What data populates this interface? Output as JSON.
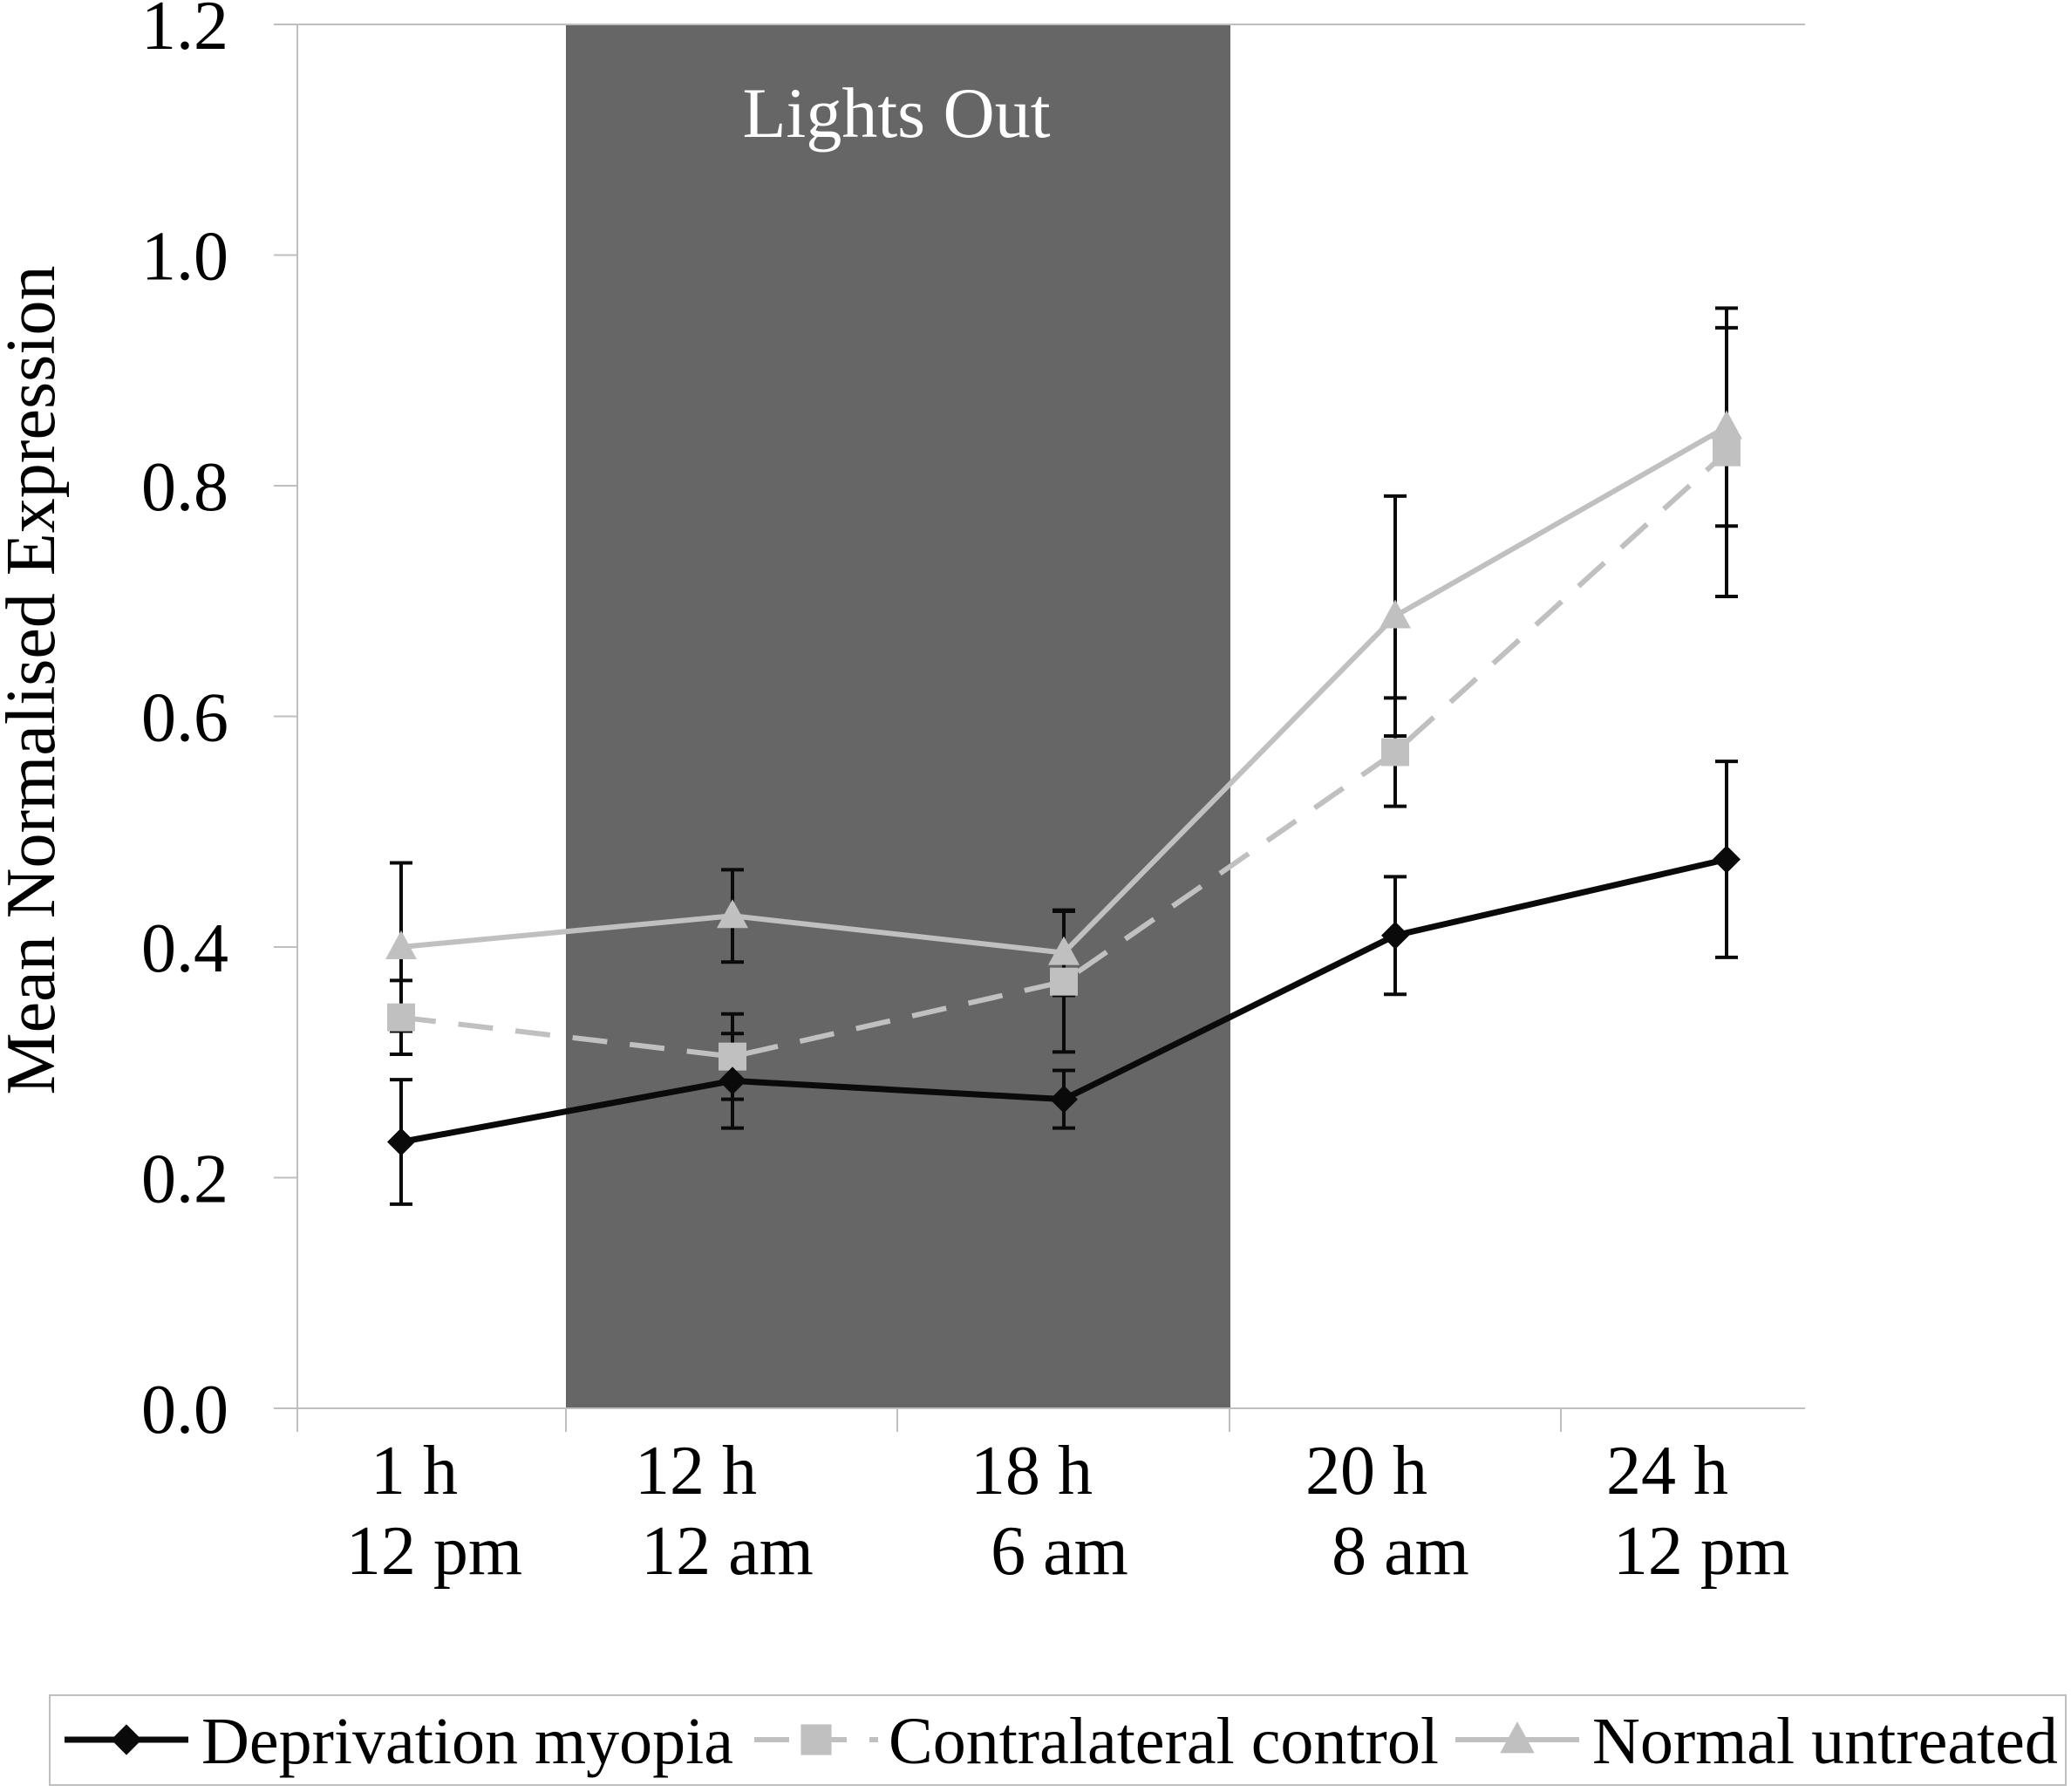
{
  "chart_data": {
    "type": "line",
    "title": "",
    "xlabel": "",
    "ylabel": "Mean Normalised Expression",
    "ylim": [
      0,
      1.2
    ],
    "yticks": [
      "0.0",
      "0.2",
      "0.4",
      "0.6",
      "0.8",
      "1.0",
      "1.2"
    ],
    "ytick_values": [
      0,
      0.2,
      0.4,
      0.6,
      0.8,
      1.0,
      1.2
    ],
    "grid": false,
    "categories": [
      {
        "line1": "1 h",
        "line2": "12 pm"
      },
      {
        "line1": "12 h",
        "line2": "12 am"
      },
      {
        "line1": "18 h",
        "line2": "6 am"
      },
      {
        "line1": "20 h",
        "line2": "8 am"
      },
      {
        "line1": "24 h",
        "line2": "12 pm"
      }
    ],
    "shaded_region": {
      "label": "Lights Out",
      "color": "#666666",
      "label_color": "#ffffff",
      "description": "spans between the 1 h and 12 h categories through between 18 h and 20 h"
    },
    "series": [
      {
        "name": "Deprivation myopia",
        "color": "#0a0a0a",
        "marker": "diamond",
        "dash": "solid",
        "values": [
          0.231,
          0.284,
          0.268,
          0.41,
          0.476
        ],
        "errors": [
          0.054,
          0.041,
          0.025,
          0.051,
          0.085
        ]
      },
      {
        "name": "Contralateral control",
        "color": "#c0c0c0",
        "marker": "square",
        "dash": "dashed",
        "values": [
          0.339,
          0.305,
          0.37,
          0.569,
          0.829
        ],
        "errors": [
          0.032,
          0.037,
          0.061,
          0.047,
          0.125
        ]
      },
      {
        "name": "Normal untreated",
        "color": "#c0c0c0",
        "marker": "triangle",
        "dash": "solid",
        "values": [
          0.4,
          0.427,
          0.395,
          0.687,
          0.851
        ],
        "errors": [
          0.073,
          0.04,
          0.037,
          0.104,
          0.086
        ]
      }
    ],
    "error_bar_color": "#0a0a0a",
    "legend_position": "bottom"
  }
}
